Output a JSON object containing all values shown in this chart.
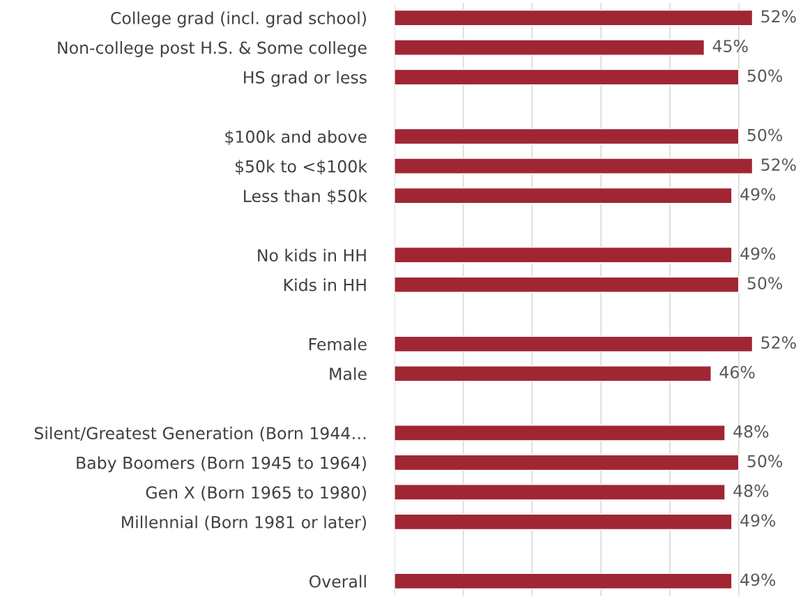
{
  "chart_data": {
    "type": "bar",
    "orientation": "horizontal",
    "categories": [
      "College grad (incl. grad school)",
      "Non-college post H.S. & Some college",
      "HS grad or less",
      null,
      "$100k and above",
      "$50k to <$100k",
      "Less than $50k",
      null,
      "No kids in HH",
      "Kids in HH",
      null,
      "Female",
      "Male",
      null,
      "Silent/Greatest Generation (Born 1944…",
      "Baby Boomers (Born 1945 to 1964)",
      "Gen X (Born 1965 to 1980)",
      "Millennial (Born 1981 or later)",
      null,
      "Overall"
    ],
    "values": [
      52,
      45,
      50,
      null,
      50,
      52,
      49,
      null,
      49,
      50,
      null,
      52,
      46,
      null,
      48,
      50,
      48,
      49,
      null,
      49
    ],
    "value_labels": [
      "52%",
      "45%",
      "50%",
      null,
      "50%",
      "52%",
      "49%",
      null,
      "49%",
      "50%",
      null,
      "52%",
      "46%",
      null,
      "48%",
      "50%",
      "48%",
      "49%",
      null,
      "49%"
    ],
    "color": "#a02634",
    "xticks": [
      {
        "value": 0,
        "label": null
      },
      {
        "value": 10,
        "label": null
      },
      {
        "value": 20,
        "label": null
      },
      {
        "value": 30,
        "label": null
      },
      {
        "value": 40,
        "label": null
      },
      {
        "value": 50,
        "label": null
      }
    ],
    "grid": "x",
    "tick_labels": "y"
  }
}
